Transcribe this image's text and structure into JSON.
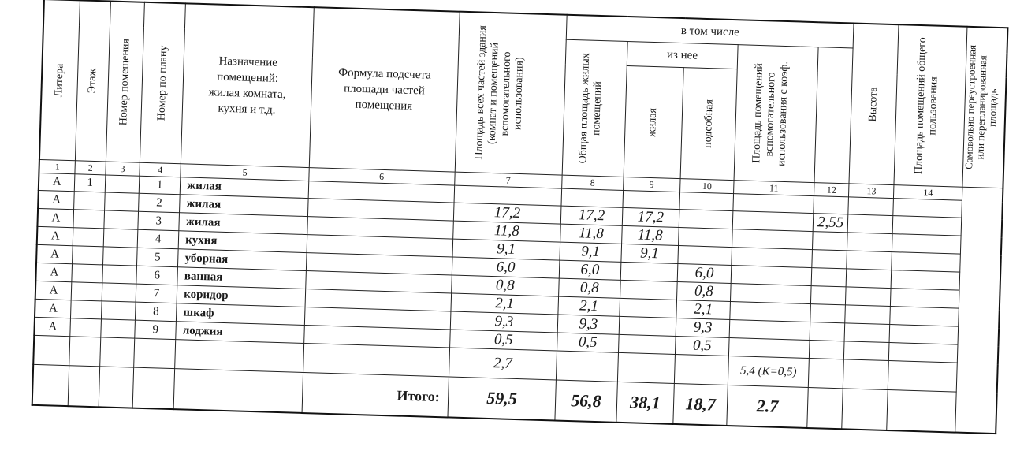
{
  "header": {
    "col1": "Литера",
    "col2": "Этаж",
    "col3": "Номер помещения",
    "col4": "Номер по плану",
    "col5": "Назначение помещений: жилая комната, кухня и т.д.",
    "col6": "Формула подсчета площади частей помещения",
    "col7": "Площадь всех частей здания (комнат и помещений вспомогательного использования)",
    "group": "в том числе",
    "col8": "Общая площадь жилых помещений",
    "subgroup": "из нее",
    "col9": "жилая",
    "col10": "подсобная",
    "col11": "Площадь помещений вспомогательного использования с коэф.",
    "col12": "Высота",
    "col13": "Площадь помещений общего пользования",
    "col14": "Самовольно переустроенная или перепланированная площадь"
  },
  "column_numbers": [
    "1",
    "2",
    "3",
    "4",
    "5",
    "6",
    "7",
    "8",
    "9",
    "10",
    "11",
    "12",
    "13",
    "14"
  ],
  "rows": [
    {
      "litera": "А",
      "floor": "1",
      "room": "",
      "plan": "1",
      "name": "жилая",
      "formula": "",
      "total": "",
      "living_total": "",
      "living": "",
      "aux": "",
      "aux_coef": "",
      "height": "",
      "common": "",
      "unauth": ""
    },
    {
      "litera": "А",
      "floor": "",
      "room": "",
      "plan": "2",
      "name": "жилая",
      "formula": "",
      "total": "17,2",
      "living_total": "17,2",
      "living": "17,2",
      "aux": "",
      "aux_coef": "",
      "height": "2,55",
      "common": "",
      "unauth": ""
    },
    {
      "litera": "А",
      "floor": "",
      "room": "",
      "plan": "3",
      "name": "жилая",
      "formula": "",
      "total": "11,8",
      "living_total": "11,8",
      "living": "11,8",
      "aux": "",
      "aux_coef": "",
      "height": "",
      "common": "",
      "unauth": ""
    },
    {
      "litera": "А",
      "floor": "",
      "room": "",
      "plan": "4",
      "name": "кухня",
      "formula": "",
      "total": "9,1",
      "living_total": "9,1",
      "living": "9,1",
      "aux": "",
      "aux_coef": "",
      "height": "",
      "common": "",
      "unauth": ""
    },
    {
      "litera": "А",
      "floor": "",
      "room": "",
      "plan": "5",
      "name": "уборная",
      "formula": "",
      "total": "6,0",
      "living_total": "6,0",
      "living": "",
      "aux": "6,0",
      "aux_coef": "",
      "height": "",
      "common": "",
      "unauth": ""
    },
    {
      "litera": "А",
      "floor": "",
      "room": "",
      "plan": "6",
      "name": "ванная",
      "formula": "",
      "total": "0,8",
      "living_total": "0,8",
      "living": "",
      "aux": "0,8",
      "aux_coef": "",
      "height": "",
      "common": "",
      "unauth": ""
    },
    {
      "litera": "А",
      "floor": "",
      "room": "",
      "plan": "7",
      "name": "коридор",
      "formula": "",
      "total": "2,1",
      "living_total": "2,1",
      "living": "",
      "aux": "2,1",
      "aux_coef": "",
      "height": "",
      "common": "",
      "unauth": ""
    },
    {
      "litera": "А",
      "floor": "",
      "room": "",
      "plan": "8",
      "name": "шкаф",
      "formula": "",
      "total": "9,3",
      "living_total": "9,3",
      "living": "",
      "aux": "9,3",
      "aux_coef": "",
      "height": "",
      "common": "",
      "unauth": ""
    },
    {
      "litera": "А",
      "floor": "",
      "room": "",
      "plan": "9",
      "name": "лоджия",
      "formula": "",
      "total": "0,5",
      "living_total": "0,5",
      "living": "",
      "aux": "0,5",
      "aux_coef": "",
      "height": "",
      "common": "",
      "unauth": ""
    },
    {
      "litera": "",
      "floor": "",
      "room": "",
      "plan": "",
      "name": "",
      "formula": "",
      "total": "2,7",
      "living_total": "",
      "living": "",
      "aux": "",
      "aux_coef": "5,4 (K=0,5)",
      "height": "",
      "common": "",
      "unauth": ""
    }
  ],
  "totals": {
    "label": "Итого:",
    "total": "59,5",
    "living_total": "56,8",
    "living": "38,1",
    "aux": "18,7",
    "aux_coef": "2.7"
  }
}
